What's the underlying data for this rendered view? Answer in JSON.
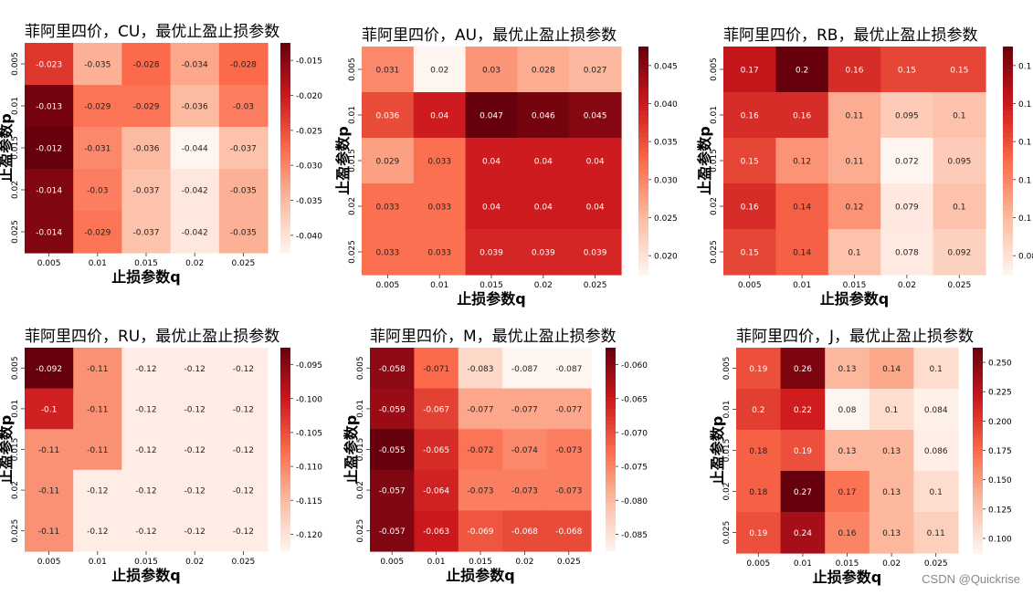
{
  "watermark": "CSDN @Quickrise",
  "colors": {
    "cmap": [
      "#fff5f0",
      "#fcbba1",
      "#fb6a4a",
      "#cb181d",
      "#67000d"
    ]
  },
  "chart_data": [
    {
      "type": "heatmap",
      "title": "菲阿里四价，CU，最优止盈止损参数",
      "xlabel": "止损参数q",
      "ylabel": "止盈参数p",
      "x": [
        "0.005",
        "0.01",
        "0.015",
        "0.02",
        "0.025"
      ],
      "y": [
        "0.005",
        "0.01",
        "0.015",
        "0.02",
        "0.025"
      ],
      "values": [
        [
          -0.023,
          -0.035,
          -0.028,
          -0.034,
          -0.028
        ],
        [
          -0.013,
          -0.029,
          -0.029,
          -0.036,
          -0.03
        ],
        [
          -0.012,
          -0.031,
          -0.036,
          -0.044,
          -0.037
        ],
        [
          -0.014,
          -0.03,
          -0.037,
          -0.042,
          -0.035
        ],
        [
          -0.014,
          -0.029,
          -0.037,
          -0.042,
          -0.035
        ]
      ],
      "labels": [
        [
          "-0.023",
          "-0.035",
          "-0.028",
          "-0.034",
          "-0.028"
        ],
        [
          "-0.013",
          "-0.029",
          "-0.029",
          "-0.036",
          "-0.03"
        ],
        [
          "-0.012",
          "-0.031",
          "-0.036",
          "-0.044",
          "-0.037"
        ],
        [
          "-0.014",
          "-0.03",
          "-0.037",
          "-0.042",
          "-0.035"
        ],
        [
          "-0.014",
          "-0.029",
          "-0.037",
          "-0.042",
          "-0.035"
        ]
      ],
      "vmin": -0.044,
      "vmax": -0.012,
      "colorbar_ticks": [
        "-0.015",
        "-0.020",
        "-0.025",
        "-0.030",
        "-0.035",
        "-0.040"
      ]
    },
    {
      "type": "heatmap",
      "title": "菲阿里四价，AU，最优止盈止损参数",
      "xlabel": "止损参数q",
      "ylabel": "止盈参数p",
      "x": [
        "0.005",
        "0.01",
        "0.015",
        "0.02",
        "0.025"
      ],
      "y": [
        "0.005",
        "0.01",
        "0.015",
        "0.02",
        "0.025"
      ],
      "values": [
        [
          0.031,
          0.02,
          0.03,
          0.028,
          0.027
        ],
        [
          0.036,
          0.04,
          0.047,
          0.046,
          0.045
        ],
        [
          0.029,
          0.033,
          0.04,
          0.04,
          0.04
        ],
        [
          0.033,
          0.033,
          0.04,
          0.04,
          0.04
        ],
        [
          0.033,
          0.033,
          0.039,
          0.039,
          0.039
        ]
      ],
      "labels": [
        [
          "0.031",
          "0.02",
          "0.03",
          "0.028",
          "0.027"
        ],
        [
          "0.036",
          "0.04",
          "0.047",
          "0.046",
          "0.045"
        ],
        [
          "0.029",
          "0.033",
          "0.04",
          "0.04",
          "0.04"
        ],
        [
          "0.033",
          "0.033",
          "0.04",
          "0.04",
          "0.04"
        ],
        [
          "0.033",
          "0.033",
          "0.039",
          "0.039",
          "0.039"
        ]
      ],
      "vmin": 0.02,
      "vmax": 0.047,
      "colorbar_ticks": [
        "0.045",
        "0.040",
        "0.035",
        "0.030",
        "0.025",
        "0.020"
      ]
    },
    {
      "type": "heatmap",
      "title": "菲阿里四价，RB，最优止盈止损参数",
      "xlabel": "止损参数q",
      "ylabel": "止盈参数p",
      "x": [
        "0.005",
        "0.01",
        "0.015",
        "0.02",
        "0.025"
      ],
      "y": [
        "0.005",
        "0.01",
        "0.015",
        "0.02",
        "0.025"
      ],
      "values": [
        [
          0.17,
          0.2,
          0.16,
          0.15,
          0.15
        ],
        [
          0.16,
          0.16,
          0.11,
          0.095,
          0.1
        ],
        [
          0.15,
          0.12,
          0.11,
          0.072,
          0.095
        ],
        [
          0.16,
          0.14,
          0.12,
          0.079,
          0.1
        ],
        [
          0.15,
          0.14,
          0.1,
          0.078,
          0.092
        ]
      ],
      "labels": [
        [
          "0.17",
          "0.2",
          "0.16",
          "0.15",
          "0.15"
        ],
        [
          "0.16",
          "0.16",
          "0.11",
          "0.095",
          "0.1"
        ],
        [
          "0.15",
          "0.12",
          "0.11",
          "0.072",
          "0.095"
        ],
        [
          "0.16",
          "0.14",
          "0.12",
          "0.079",
          "0.1"
        ],
        [
          "0.15",
          "0.14",
          "0.1",
          "0.078",
          "0.092"
        ]
      ],
      "vmin": 0.072,
      "vmax": 0.2,
      "colorbar_ticks": [
        "0.1",
        "0.1",
        "0.1",
        "0.1",
        "0.1",
        "0.08"
      ]
    },
    {
      "type": "heatmap",
      "title": "菲阿里四价，RU，最优止盈止损参数",
      "xlabel": "止损参数q",
      "ylabel": "止盈参数p",
      "x": [
        "0.005",
        "0.01",
        "0.015",
        "0.02",
        "0.025"
      ],
      "y": [
        "0.005",
        "0.01",
        "0.015",
        "0.02",
        "0.025"
      ],
      "values": [
        [
          -0.092,
          -0.11,
          -0.12,
          -0.12,
          -0.12
        ],
        [
          -0.1,
          -0.11,
          -0.12,
          -0.12,
          -0.12
        ],
        [
          -0.11,
          -0.11,
          -0.12,
          -0.12,
          -0.12
        ],
        [
          -0.11,
          -0.12,
          -0.12,
          -0.12,
          -0.12
        ],
        [
          -0.11,
          -0.12,
          -0.12,
          -0.12,
          -0.12
        ]
      ],
      "labels": [
        [
          "-0.092",
          "-0.11",
          "-0.12",
          "-0.12",
          "-0.12"
        ],
        [
          "-0.1",
          "-0.11",
          "-0.12",
          "-0.12",
          "-0.12"
        ],
        [
          "-0.11",
          "-0.11",
          "-0.12",
          "-0.12",
          "-0.12"
        ],
        [
          "-0.11",
          "-0.12",
          "-0.12",
          "-0.12",
          "-0.12"
        ],
        [
          "-0.11",
          "-0.12",
          "-0.12",
          "-0.12",
          "-0.12"
        ]
      ],
      "vmin": -0.121,
      "vmax": -0.092,
      "colorbar_ticks": [
        "-0.095",
        "-0.100",
        "-0.105",
        "-0.110",
        "-0.115",
        "-0.120"
      ]
    },
    {
      "type": "heatmap",
      "title": "菲阿里四价，M，最优止盈止损参数",
      "xlabel": "止损参数q",
      "ylabel": "止盈参数p",
      "x": [
        "0.005",
        "0.01",
        "0.015",
        "0.02",
        "0.025"
      ],
      "y": [
        "0.005",
        "0.01",
        "0.015",
        "0.02",
        "0.025"
      ],
      "values": [
        [
          -0.058,
          -0.071,
          -0.083,
          -0.087,
          -0.087
        ],
        [
          -0.059,
          -0.067,
          -0.077,
          -0.077,
          -0.077
        ],
        [
          -0.055,
          -0.065,
          -0.072,
          -0.074,
          -0.073
        ],
        [
          -0.057,
          -0.064,
          -0.073,
          -0.073,
          -0.073
        ],
        [
          -0.057,
          -0.063,
          -0.069,
          -0.068,
          -0.068
        ]
      ],
      "labels": [
        [
          "-0.058",
          "-0.071",
          "-0.083",
          "-0.087",
          "-0.087"
        ],
        [
          "-0.059",
          "-0.067",
          "-0.077",
          "-0.077",
          "-0.077"
        ],
        [
          "-0.055",
          "-0.065",
          "-0.072",
          "-0.074",
          "-0.073"
        ],
        [
          "-0.057",
          "-0.064",
          "-0.073",
          "-0.073",
          "-0.073"
        ],
        [
          "-0.057",
          "-0.063",
          "-0.069",
          "-0.068",
          "-0.068"
        ]
      ],
      "vmin": -0.087,
      "vmax": -0.055,
      "colorbar_ticks": [
        "-0.060",
        "-0.065",
        "-0.070",
        "-0.075",
        "-0.080",
        "-0.085"
      ]
    },
    {
      "type": "heatmap",
      "title": "菲阿里四价，J，最优止盈止损参数",
      "xlabel": "止损参数q",
      "ylabel": "止盈参数p",
      "x": [
        "0.005",
        "0.01",
        "0.015",
        "0.02",
        "0.025"
      ],
      "y": [
        "0.005",
        "0.01",
        "0.015",
        "0.02",
        "0.025"
      ],
      "values": [
        [
          0.19,
          0.26,
          0.13,
          0.14,
          0.1
        ],
        [
          0.2,
          0.22,
          0.08,
          0.1,
          0.084
        ],
        [
          0.18,
          0.19,
          0.13,
          0.13,
          0.086
        ],
        [
          0.18,
          0.27,
          0.17,
          0.13,
          0.1
        ],
        [
          0.19,
          0.24,
          0.16,
          0.13,
          0.11
        ]
      ],
      "labels": [
        [
          "0.19",
          "0.26",
          "0.13",
          "0.14",
          "0.1"
        ],
        [
          "0.2",
          "0.22",
          "0.08",
          "0.1",
          "0.084"
        ],
        [
          "0.18",
          "0.19",
          "0.13",
          "0.13",
          "0.086"
        ],
        [
          "0.18",
          "0.27",
          "0.17",
          "0.13",
          "0.1"
        ],
        [
          "0.19",
          "0.24",
          "0.16",
          "0.13",
          "0.11"
        ]
      ],
      "vmin": 0.08,
      "vmax": 0.27,
      "colorbar_ticks": [
        "0.250",
        "0.225",
        "0.200",
        "0.175",
        "0.150",
        "0.125",
        "0.100"
      ]
    }
  ]
}
